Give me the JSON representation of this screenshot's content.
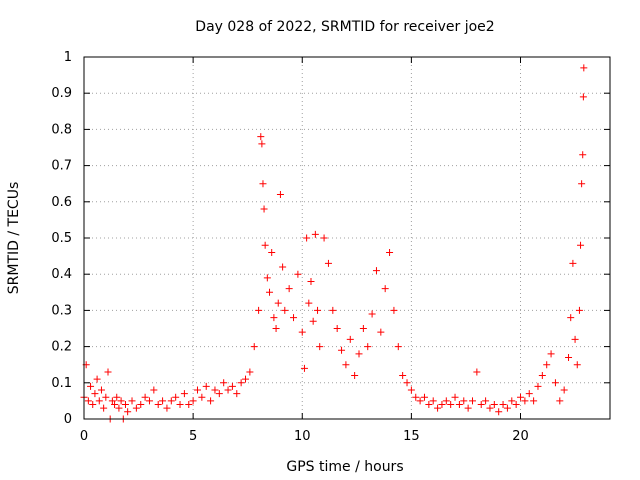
{
  "chart_data": {
    "type": "scatter",
    "title": "Day 028 of 2022, SRMTID for receiver joe2",
    "xlabel": "GPS time / hours",
    "ylabel": "SRMTID / TECUs",
    "xlim": [
      0,
      24.1
    ],
    "ylim": [
      0,
      1
    ],
    "xticks": [
      0,
      5,
      10,
      15,
      20
    ],
    "xtick_labels": [
      "0",
      "5",
      "10",
      "15",
      "20"
    ],
    "yticks": [
      0,
      0.1,
      0.2,
      0.3,
      0.4,
      0.5,
      0.6,
      0.7,
      0.8,
      0.9,
      1
    ],
    "ytick_labels": [
      "0",
      "0.1",
      "0.2",
      "0.3",
      "0.4",
      "0.5",
      "0.6",
      "0.7",
      "0.8",
      "0.9",
      "1"
    ],
    "grid": true,
    "marker": "+",
    "color": "#ff0000",
    "series": [
      {
        "name": "SRMTID",
        "points": [
          [
            0.0,
            0.06
          ],
          [
            0.1,
            0.15
          ],
          [
            0.2,
            0.05
          ],
          [
            0.3,
            0.09
          ],
          [
            0.4,
            0.04
          ],
          [
            0.5,
            0.07
          ],
          [
            0.6,
            0.11
          ],
          [
            0.7,
            0.05
          ],
          [
            0.8,
            0.08
          ],
          [
            0.9,
            0.03
          ],
          [
            1.0,
            0.06
          ],
          [
            1.1,
            0.13
          ],
          [
            1.2,
            0.0
          ],
          [
            1.3,
            0.05
          ],
          [
            1.4,
            0.04
          ],
          [
            1.5,
            0.06
          ],
          [
            1.6,
            0.03
          ],
          [
            1.7,
            0.05
          ],
          [
            1.8,
            0.0
          ],
          [
            1.9,
            0.04
          ],
          [
            2.0,
            0.02
          ],
          [
            2.2,
            0.05
          ],
          [
            2.4,
            0.03
          ],
          [
            2.6,
            0.04
          ],
          [
            2.8,
            0.06
          ],
          [
            3.0,
            0.05
          ],
          [
            3.2,
            0.08
          ],
          [
            3.4,
            0.04
          ],
          [
            3.6,
            0.05
          ],
          [
            3.8,
            0.03
          ],
          [
            4.0,
            0.05
          ],
          [
            4.2,
            0.06
          ],
          [
            4.4,
            0.04
          ],
          [
            4.6,
            0.07
          ],
          [
            4.8,
            0.04
          ],
          [
            5.0,
            0.05
          ],
          [
            5.2,
            0.08
          ],
          [
            5.4,
            0.06
          ],
          [
            5.6,
            0.09
          ],
          [
            5.8,
            0.05
          ],
          [
            6.0,
            0.08
          ],
          [
            6.2,
            0.07
          ],
          [
            6.4,
            0.1
          ],
          [
            6.6,
            0.08
          ],
          [
            6.8,
            0.09
          ],
          [
            7.0,
            0.07
          ],
          [
            7.2,
            0.1
          ],
          [
            7.4,
            0.11
          ],
          [
            7.6,
            0.13
          ],
          [
            7.8,
            0.2
          ],
          [
            8.0,
            0.3
          ],
          [
            8.1,
            0.78
          ],
          [
            8.15,
            0.76
          ],
          [
            8.2,
            0.65
          ],
          [
            8.25,
            0.58
          ],
          [
            8.3,
            0.48
          ],
          [
            8.4,
            0.39
          ],
          [
            8.5,
            0.35
          ],
          [
            8.6,
            0.46
          ],
          [
            8.7,
            0.28
          ],
          [
            8.8,
            0.25
          ],
          [
            8.9,
            0.32
          ],
          [
            9.0,
            0.62
          ],
          [
            9.1,
            0.42
          ],
          [
            9.2,
            0.3
          ],
          [
            9.4,
            0.36
          ],
          [
            9.6,
            0.28
          ],
          [
            9.8,
            0.4
          ],
          [
            10.0,
            0.24
          ],
          [
            10.1,
            0.14
          ],
          [
            10.2,
            0.5
          ],
          [
            10.3,
            0.32
          ],
          [
            10.4,
            0.38
          ],
          [
            10.5,
            0.27
          ],
          [
            10.6,
            0.51
          ],
          [
            10.7,
            0.3
          ],
          [
            10.8,
            0.2
          ],
          [
            11.0,
            0.5
          ],
          [
            11.2,
            0.43
          ],
          [
            11.4,
            0.3
          ],
          [
            11.6,
            0.25
          ],
          [
            11.8,
            0.19
          ],
          [
            12.0,
            0.15
          ],
          [
            12.2,
            0.22
          ],
          [
            12.4,
            0.12
          ],
          [
            12.6,
            0.18
          ],
          [
            12.8,
            0.25
          ],
          [
            13.0,
            0.2
          ],
          [
            13.2,
            0.29
          ],
          [
            13.4,
            0.41
          ],
          [
            13.6,
            0.24
          ],
          [
            13.8,
            0.36
          ],
          [
            14.0,
            0.46
          ],
          [
            14.2,
            0.3
          ],
          [
            14.4,
            0.2
          ],
          [
            14.6,
            0.12
          ],
          [
            14.8,
            0.1
          ],
          [
            15.0,
            0.08
          ],
          [
            15.2,
            0.06
          ],
          [
            15.4,
            0.05
          ],
          [
            15.6,
            0.06
          ],
          [
            15.8,
            0.04
          ],
          [
            16.0,
            0.05
          ],
          [
            16.2,
            0.03
          ],
          [
            16.4,
            0.04
          ],
          [
            16.6,
            0.05
          ],
          [
            16.8,
            0.04
          ],
          [
            17.0,
            0.06
          ],
          [
            17.2,
            0.04
          ],
          [
            17.4,
            0.05
          ],
          [
            17.6,
            0.03
          ],
          [
            17.8,
            0.05
          ],
          [
            18.0,
            0.13
          ],
          [
            18.2,
            0.04
          ],
          [
            18.4,
            0.05
          ],
          [
            18.6,
            0.03
          ],
          [
            18.8,
            0.04
          ],
          [
            19.0,
            0.02
          ],
          [
            19.2,
            0.04
          ],
          [
            19.4,
            0.03
          ],
          [
            19.6,
            0.05
          ],
          [
            19.8,
            0.04
          ],
          [
            20.0,
            0.06
          ],
          [
            20.2,
            0.05
          ],
          [
            20.4,
            0.07
          ],
          [
            20.6,
            0.05
          ],
          [
            20.8,
            0.09
          ],
          [
            21.0,
            0.12
          ],
          [
            21.2,
            0.15
          ],
          [
            21.4,
            0.18
          ],
          [
            21.6,
            0.1
          ],
          [
            21.8,
            0.05
          ],
          [
            22.0,
            0.08
          ],
          [
            22.2,
            0.17
          ],
          [
            22.3,
            0.28
          ],
          [
            22.4,
            0.43
          ],
          [
            22.5,
            0.22
          ],
          [
            22.6,
            0.15
          ],
          [
            22.7,
            0.3
          ],
          [
            22.75,
            0.48
          ],
          [
            22.8,
            0.65
          ],
          [
            22.85,
            0.73
          ],
          [
            22.88,
            0.89
          ],
          [
            22.9,
            0.97
          ]
        ]
      }
    ]
  }
}
